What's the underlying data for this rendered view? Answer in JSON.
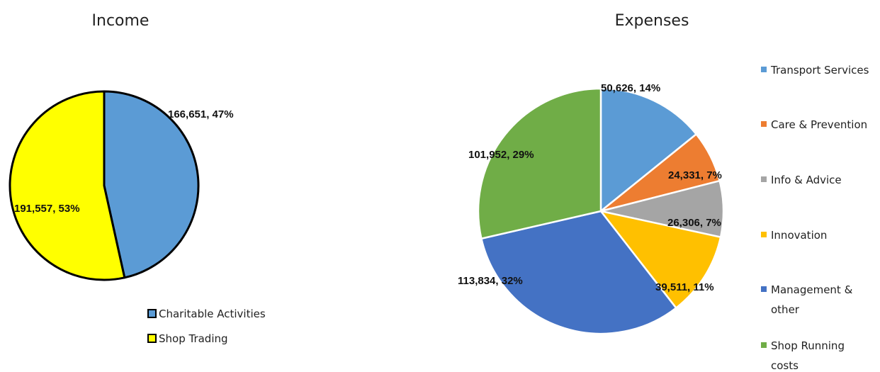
{
  "chart_data": [
    {
      "type": "pie",
      "title": "Income",
      "legend_position": "bottom-right",
      "slice_border": "#000000",
      "slices": [
        {
          "name": "Charitable Activities",
          "value": 166651,
          "label": "166,651, 47%",
          "color": "#5B9BD5"
        },
        {
          "name": "Shop Trading",
          "value": 191557,
          "label": "191,557, 53%",
          "color": "#FFFF00"
        }
      ]
    },
    {
      "type": "pie",
      "title": "Expenses",
      "legend_position": "right",
      "slice_border": "#ffffff",
      "slices": [
        {
          "name": "Transport Services",
          "value": 50626,
          "label": "50,626, 14%",
          "color": "#5B9BD5"
        },
        {
          "name": "Care & Prevention",
          "value": 24331,
          "label": "24,331, 7%",
          "color": "#ED7D31"
        },
        {
          "name": "Info & Advice",
          "value": 26306,
          "label": "26,306, 7%",
          "color": "#A5A5A5"
        },
        {
          "name": "Innovation",
          "value": 39511,
          "label": "39,511, 11%",
          "color": "#FFC000"
        },
        {
          "name": "Management & other",
          "legend_lines": [
            "Management &",
            "other"
          ],
          "value": 113834,
          "label": "113,834, 32%",
          "color": "#4472C4"
        },
        {
          "name": "Shop Running costs",
          "legend_lines": [
            "Shop Running",
            "costs"
          ],
          "value": 101952,
          "label": "101,952, 29%",
          "color": "#70AD47"
        }
      ]
    }
  ]
}
